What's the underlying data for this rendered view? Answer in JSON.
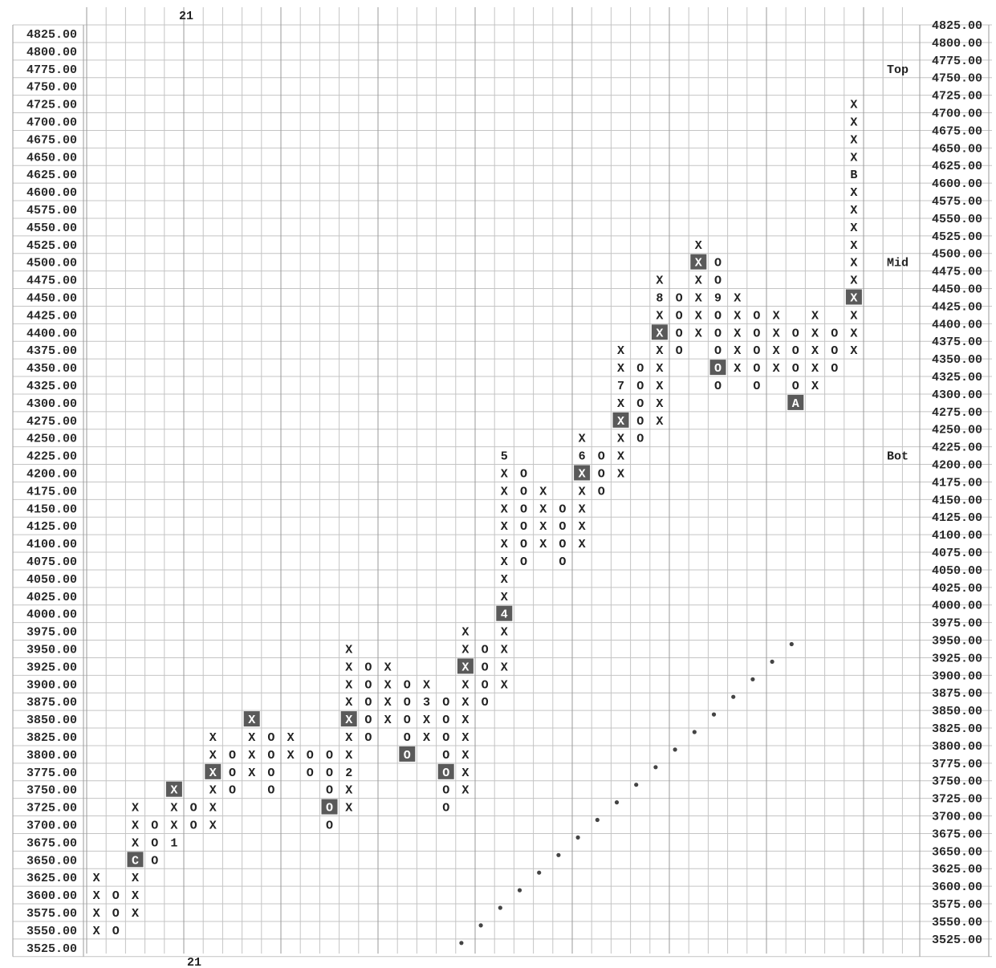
{
  "chart_data": {
    "type": "point-and-figure",
    "box_size": 25,
    "reversal": 3,
    "y_range": [
      3525,
      4825
    ],
    "column_count": 41,
    "header_label": "21",
    "footer_label": "21",
    "side_labels": [
      {
        "text": "Top",
        "price": 4775
      },
      {
        "text": "Mid",
        "price": 4500
      },
      {
        "text": "Bot",
        "price": 4225
      }
    ],
    "y_ticks": [
      "4825.00",
      "4800.00",
      "4775.00",
      "4750.00",
      "4725.00",
      "4700.00",
      "4675.00",
      "4650.00",
      "4625.00",
      "4600.00",
      "4575.00",
      "4550.00",
      "4525.00",
      "4500.00",
      "4475.00",
      "4450.00",
      "4425.00",
      "4400.00",
      "4375.00",
      "4350.00",
      "4325.00",
      "4300.00",
      "4275.00",
      "4250.00",
      "4225.00",
      "4200.00",
      "4175.00",
      "4150.00",
      "4125.00",
      "4100.00",
      "4075.00",
      "4050.00",
      "4025.00",
      "4000.00",
      "3975.00",
      "3950.00",
      "3925.00",
      "3900.00",
      "3875.00",
      "3850.00",
      "3825.00",
      "3800.00",
      "3775.00",
      "3750.00",
      "3725.00",
      "3700.00",
      "3675.00",
      "3650.00",
      "3625.00",
      "3600.00",
      "3575.00",
      "3550.00",
      "3525.00"
    ],
    "columns": [
      {
        "col": 0,
        "type": "X",
        "from": 3550,
        "to": 3625
      },
      {
        "col": 1,
        "type": "O",
        "from": 3600,
        "to": 3550
      },
      {
        "col": 2,
        "type": "X",
        "from": 3575,
        "to": 3725,
        "special": {
          "3650": "C"
        },
        "highlight": [
          3650
        ]
      },
      {
        "col": 3,
        "type": "O",
        "from": 3700,
        "to": 3650
      },
      {
        "col": 4,
        "type": "X",
        "from": 3675,
        "to": 3750,
        "special": {
          "3675": "1"
        },
        "highlight": [
          3750
        ]
      },
      {
        "col": 5,
        "type": "O",
        "from": 3725,
        "to": 3700
      },
      {
        "col": 6,
        "type": "X",
        "from": 3700,
        "to": 3825,
        "highlight": [
          3775
        ]
      },
      {
        "col": 7,
        "type": "O",
        "from": 3800,
        "to": 3750
      },
      {
        "col": 8,
        "type": "X",
        "from": 3775,
        "to": 3850,
        "highlight": [
          3850
        ]
      },
      {
        "col": 9,
        "type": "O",
        "from": 3825,
        "to": 3750
      },
      {
        "col": 10,
        "type": "X",
        "from": 3800,
        "to": 3825
      },
      {
        "col": 11,
        "type": "O",
        "from": 3800,
        "to": 3775
      },
      {
        "col": 12,
        "type": "O",
        "from": 3800,
        "to": 3700,
        "highlight": [
          3725
        ]
      },
      {
        "col": 13,
        "type": "X",
        "from": 3725,
        "to": 3950,
        "special": {
          "3775": "2"
        },
        "highlight": [
          3850
        ]
      },
      {
        "col": 14,
        "type": "O",
        "from": 3925,
        "to": 3825
      },
      {
        "col": 15,
        "type": "X",
        "from": 3850,
        "to": 3925
      },
      {
        "col": 16,
        "type": "O",
        "from": 3900,
        "to": 3800,
        "highlight": [
          3800
        ]
      },
      {
        "col": 17,
        "type": "X",
        "from": 3825,
        "to": 3900,
        "special": {
          "3875": "3"
        }
      },
      {
        "col": 18,
        "type": "O",
        "from": 3875,
        "to": 3725,
        "highlight": [
          3775
        ]
      },
      {
        "col": 19,
        "type": "X",
        "from": 3750,
        "to": 3975,
        "highlight": [
          3925
        ]
      },
      {
        "col": 20,
        "type": "O",
        "from": 3950,
        "to": 3875
      },
      {
        "col": 21,
        "type": "X",
        "from": 3900,
        "to": 4225,
        "special": {
          "4000": "4",
          "4225": "5"
        },
        "highlight": [
          4000
        ]
      },
      {
        "col": 22,
        "type": "O",
        "from": 4200,
        "to": 4075
      },
      {
        "col": 23,
        "type": "X",
        "from": 4100,
        "to": 4175
      },
      {
        "col": 24,
        "type": "O",
        "from": 4150,
        "to": 4075
      },
      {
        "col": 25,
        "type": "X",
        "from": 4100,
        "to": 4250,
        "special": {
          "4225": "6"
        },
        "highlight": [
          4200
        ]
      },
      {
        "col": 26,
        "type": "O",
        "from": 4225,
        "to": 4175
      },
      {
        "col": 27,
        "type": "X",
        "from": 4200,
        "to": 4375,
        "special": {
          "4325": "7"
        },
        "highlight": [
          4275
        ]
      },
      {
        "col": 28,
        "type": "O",
        "from": 4350,
        "to": 4250
      },
      {
        "col": 29,
        "type": "X",
        "from": 4275,
        "to": 4475,
        "special": {
          "4450": "8"
        },
        "highlight": [
          4400
        ]
      },
      {
        "col": 30,
        "type": "O",
        "from": 4450,
        "to": 4375
      },
      {
        "col": 31,
        "type": "X",
        "from": 4400,
        "to": 4525,
        "highlight": [
          4500
        ]
      },
      {
        "col": 32,
        "type": "O",
        "from": 4500,
        "to": 4325,
        "special": {
          "4450": "9"
        },
        "highlight": [
          4350
        ]
      },
      {
        "col": 33,
        "type": "X",
        "from": 4350,
        "to": 4450
      },
      {
        "col": 34,
        "type": "O",
        "from": 4425,
        "to": 4325
      },
      {
        "col": 35,
        "type": "X",
        "from": 4350,
        "to": 4425
      },
      {
        "col": 36,
        "type": "O",
        "from": 4400,
        "to": 4300,
        "special": {
          "4300": "A"
        },
        "highlight": [
          4300
        ]
      },
      {
        "col": 37,
        "type": "X",
        "from": 4325,
        "to": 4425
      },
      {
        "col": 38,
        "type": "O",
        "from": 4400,
        "to": 4350
      },
      {
        "col": 39,
        "type": "X",
        "from": 4375,
        "to": 4725,
        "special": {
          "4625": "B"
        },
        "highlight": [
          4450
        ]
      }
    ],
    "trendline": [
      {
        "col": 19,
        "price": 3525
      },
      {
        "col": 36,
        "price": 3950
      }
    ]
  }
}
